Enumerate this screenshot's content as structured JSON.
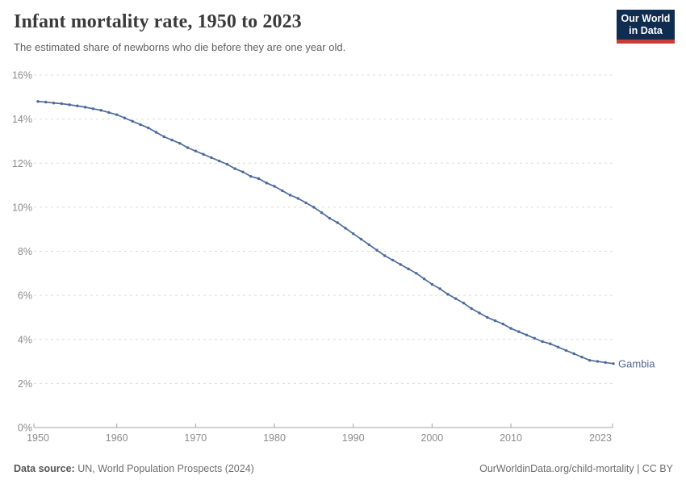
{
  "header": {
    "title": "Infant mortality rate, 1950 to 2023",
    "subtitle": "The estimated share of newborns who die before they are one year old."
  },
  "logo": {
    "line1": "Our World",
    "line2": "in Data",
    "bg_color": "#0f2d50",
    "accent_color": "#c83c37"
  },
  "footer": {
    "data_source_label": "Data source:",
    "data_source_value": " UN, World Population Prospects (2024)",
    "right": "OurWorldinData.org/child-mortality | CC BY"
  },
  "chart_data": {
    "type": "line",
    "title": "Infant mortality rate, 1950 to 2023",
    "unit": "%",
    "xlim": [
      1950,
      2023
    ],
    "ylim": [
      0,
      16
    ],
    "grid": "horizontal-dashed",
    "legend_position": "end-of-line-label",
    "xticks": [
      1950,
      1960,
      1970,
      1980,
      1990,
      2000,
      2010,
      2023
    ],
    "yticks": [
      0,
      2,
      4,
      6,
      8,
      10,
      12,
      14,
      16
    ],
    "ytick_suffix": "%",
    "x": [
      1950,
      1951,
      1952,
      1953,
      1954,
      1955,
      1956,
      1957,
      1958,
      1959,
      1960,
      1961,
      1962,
      1963,
      1964,
      1965,
      1966,
      1967,
      1968,
      1969,
      1970,
      1971,
      1972,
      1973,
      1974,
      1975,
      1976,
      1977,
      1978,
      1979,
      1980,
      1981,
      1982,
      1983,
      1984,
      1985,
      1986,
      1987,
      1988,
      1989,
      1990,
      1991,
      1992,
      1993,
      1994,
      1995,
      1996,
      1997,
      1998,
      1999,
      2000,
      2001,
      2002,
      2003,
      2004,
      2005,
      2006,
      2007,
      2008,
      2009,
      2010,
      2011,
      2012,
      2013,
      2014,
      2015,
      2016,
      2017,
      2018,
      2019,
      2020,
      2021,
      2022,
      2023
    ],
    "series": [
      {
        "name": "Gambia",
        "color": "#4C6A9C",
        "values": [
          14.8,
          14.77,
          14.73,
          14.7,
          14.65,
          14.6,
          14.54,
          14.47,
          14.4,
          14.3,
          14.2,
          14.05,
          13.9,
          13.75,
          13.6,
          13.4,
          13.2,
          13.05,
          12.9,
          12.7,
          12.55,
          12.4,
          12.25,
          12.1,
          11.95,
          11.75,
          11.6,
          11.4,
          11.3,
          11.1,
          10.95,
          10.75,
          10.55,
          10.4,
          10.2,
          10.0,
          9.75,
          9.5,
          9.3,
          9.05,
          8.8,
          8.55,
          8.3,
          8.05,
          7.8,
          7.6,
          7.4,
          7.2,
          7.0,
          6.75,
          6.5,
          6.3,
          6.05,
          5.85,
          5.65,
          5.4,
          5.2,
          5.0,
          4.85,
          4.7,
          4.5,
          4.35,
          4.2,
          4.05,
          3.9,
          3.8,
          3.65,
          3.5,
          3.35,
          3.2,
          3.05,
          3.0,
          2.95,
          2.9
        ]
      }
    ],
    "colors": {
      "grid": "#dcdcdc",
      "axis": "#a3a3a3",
      "tick_label": "#8c8c8c"
    }
  }
}
